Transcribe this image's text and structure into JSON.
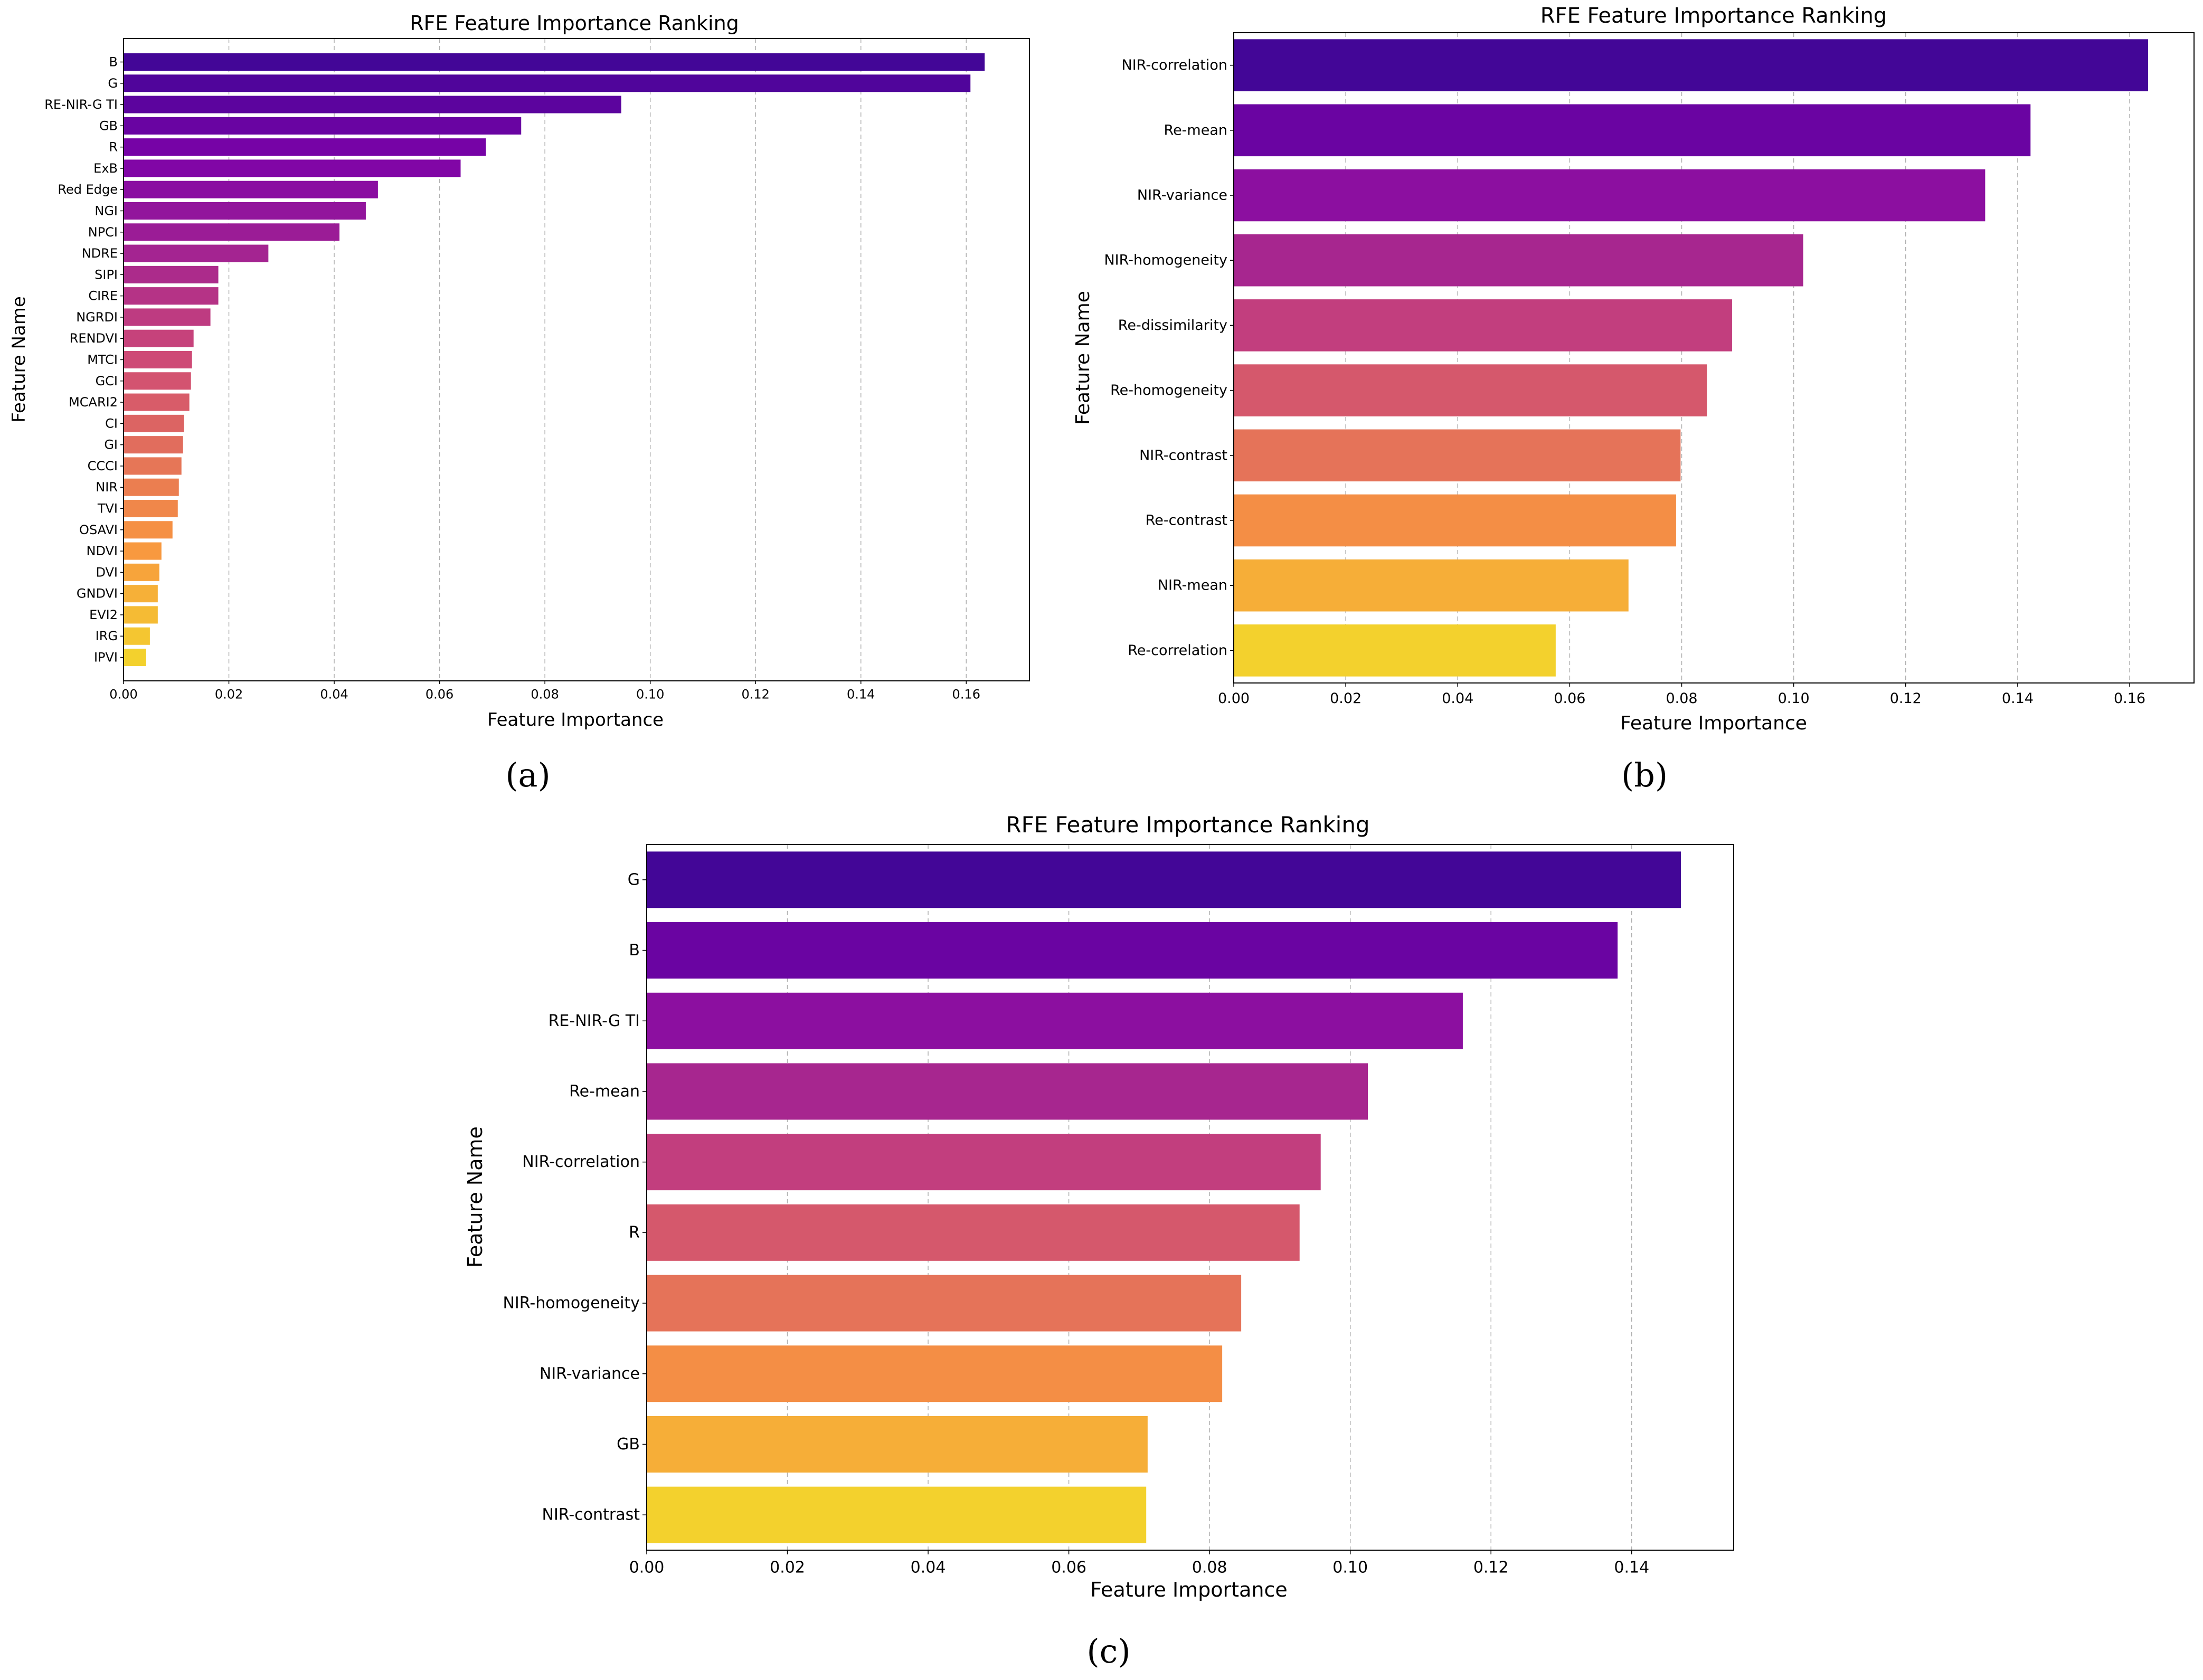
{
  "chart_data": [
    {
      "type": "bar",
      "orientation": "horizontal",
      "panel_label": "(a)",
      "title": "RFE Feature Importance Ranking",
      "xlabel": "Feature Importance",
      "ylabel": "Feature Name",
      "xlim": [
        0,
        0.172
      ],
      "xticks": [
        "0.00",
        "0.02",
        "0.04",
        "0.06",
        "0.08",
        "0.10",
        "0.12",
        "0.14",
        "0.16"
      ],
      "grid": "x-dashed",
      "categories": [
        "B",
        "G",
        "RE-NIR-G TI",
        "GB",
        "R",
        "ExB",
        "Red Edge",
        "NGI",
        "NPCI",
        "NDRE",
        "SIPI",
        "CIRE",
        "NGRDI",
        "RENDVI",
        "MTCI",
        "GCI",
        "MCARI2",
        "CI",
        "GI",
        "CCCI",
        "NIR",
        "TVI",
        "OSAVI",
        "NDVI",
        "DVI",
        "GNDVI",
        "EVI2",
        "IRG",
        "IPVI"
      ],
      "values": [
        0.1635,
        0.1608,
        0.0945,
        0.0755,
        0.0688,
        0.064,
        0.0483,
        0.046,
        0.041,
        0.0275,
        0.018,
        0.018,
        0.0165,
        0.0133,
        0.013,
        0.0128,
        0.0125,
        0.0115,
        0.0113,
        0.011,
        0.0105,
        0.0103,
        0.0093,
        0.0072,
        0.0068,
        0.0065,
        0.0065,
        0.005,
        0.0043
      ],
      "palette": "plasma"
    },
    {
      "type": "bar",
      "orientation": "horizontal",
      "panel_label": "(b)",
      "title": "RFE Feature Importance Ranking",
      "xlabel": "Feature Importance",
      "ylabel": "Feature Name",
      "xlim": [
        0,
        0.1715
      ],
      "xticks": [
        "0.00",
        "0.02",
        "0.04",
        "0.06",
        "0.08",
        "0.10",
        "0.12",
        "0.14",
        "0.16"
      ],
      "grid": "x-dashed",
      "categories": [
        "NIR-correlation",
        "Re-mean",
        "NIR-variance",
        "NIR-homogeneity",
        "Re-dissimilarity",
        "Re-homogeneity",
        "NIR-contrast",
        "Re-contrast",
        "NIR-mean",
        "Re-correlation"
      ],
      "values": [
        0.1633,
        0.1423,
        0.1342,
        0.1017,
        0.089,
        0.0845,
        0.0798,
        0.079,
        0.0705,
        0.0575
      ],
      "palette": "plasma"
    },
    {
      "type": "bar",
      "orientation": "horizontal",
      "panel_label": "(c)",
      "title": "RFE Feature Importance Ranking",
      "xlabel": "Feature Importance",
      "ylabel": "Feature Name",
      "xlim": [
        0,
        0.1545
      ],
      "xticks": [
        "0.00",
        "0.02",
        "0.04",
        "0.06",
        "0.08",
        "0.10",
        "0.12",
        "0.14"
      ],
      "grid": "x-dashed",
      "categories": [
        "G",
        "B",
        "RE-NIR-G TI",
        "Re-mean",
        "NIR-correlation",
        "R",
        "NIR-homogeneity",
        "NIR-variance",
        "GB",
        "NIR-contrast"
      ],
      "values": [
        0.147,
        0.138,
        0.116,
        0.1025,
        0.0958,
        0.0928,
        0.0845,
        0.0818,
        0.0712,
        0.071
      ],
      "palette": "plasma"
    }
  ]
}
